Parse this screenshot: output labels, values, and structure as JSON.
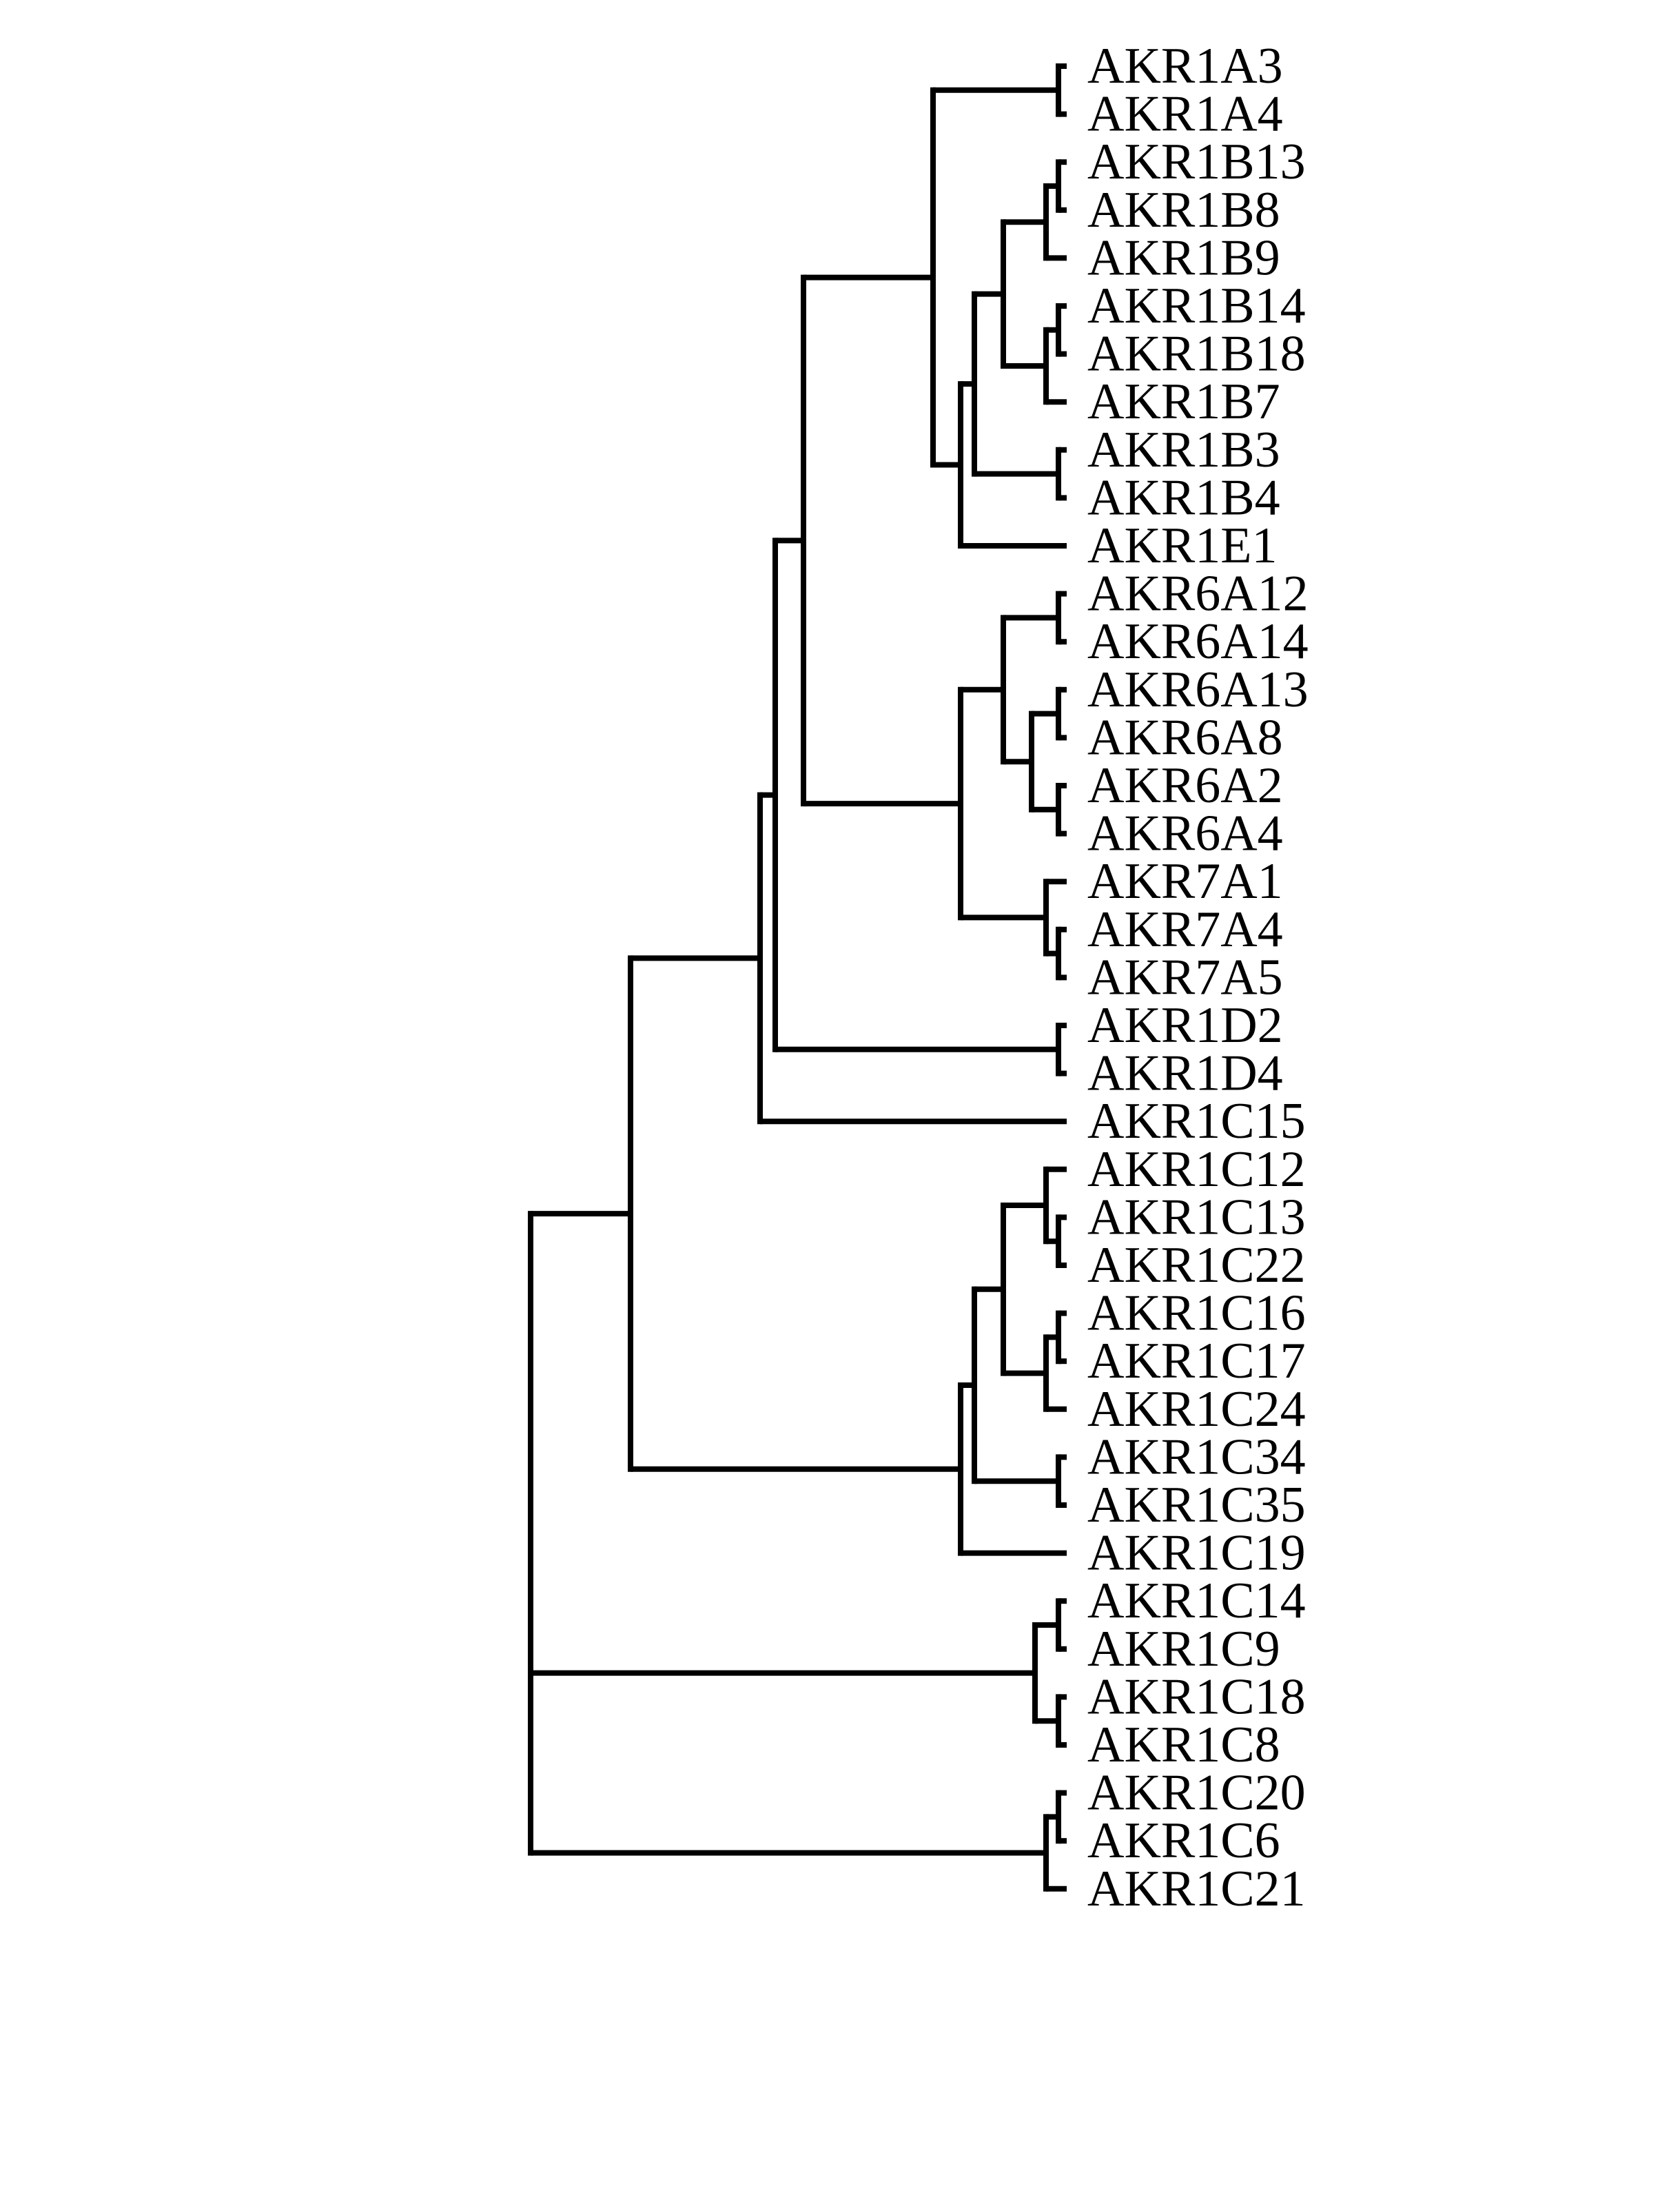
{
  "diagram": {
    "type": "dendrogram",
    "orientation": "root-left",
    "colors": {
      "line": "#000000",
      "text": "#000000",
      "background": "#ffffff"
    },
    "labels": [
      "AKR1A3",
      "AKR1A4",
      "AKR1B13",
      "AKR1B8",
      "AKR1B9",
      "AKR1B14",
      "AKR1B18",
      "AKR1B7",
      "AKR1B3",
      "AKR1B4",
      "AKR1E1",
      "AKR6A12",
      "AKR6A14",
      "AKR6A13",
      "AKR6A8",
      "AKR6A2",
      "AKR6A4",
      "AKR7A1",
      "AKR7A4",
      "AKR7A5",
      "AKR1D2",
      "AKR1D4",
      "AKR1C15",
      "AKR1C12",
      "AKR1C13",
      "AKR1C22",
      "AKR1C16",
      "AKR1C17",
      "AKR1C24",
      "AKR1C34",
      "AKR1C35",
      "AKR1C19",
      "AKR1C14",
      "AKR1C9",
      "AKR1C18",
      "AKR1C8",
      "AKR1C20",
      "AKR1C6",
      "AKR1C21"
    ],
    "tree": {
      "name": "root",
      "children": [
        {
          "name": "clade-main",
          "children": [
            {
              "name": "clade-ab67-d-c15",
              "children": [
                {
                  "name": "clade-ab67-d",
                  "children": [
                    {
                      "name": "clade-ab67",
                      "children": [
                        {
                          "name": "clade-a-b-e",
                          "children": [
                            {
                              "name": "clade-a",
                              "children": [
                                {
                                  "leaf": 0
                                },
                                {
                                  "leaf": 1
                                }
                              ]
                            },
                            {
                              "name": "clade-b-e",
                              "children": [
                                {
                                  "name": "clade-b",
                                  "children": [
                                    {
                                      "name": "clade-b-core",
                                      "children": [
                                        {
                                          "name": "clade-b13",
                                          "children": [
                                            {
                                              "name": "clade-b13-8",
                                              "children": [
                                                {
                                                  "leaf": 2
                                                },
                                                {
                                                  "leaf": 3
                                                }
                                              ]
                                            },
                                            {
                                              "leaf": 4
                                            }
                                          ]
                                        },
                                        {
                                          "name": "clade-b14",
                                          "children": [
                                            {
                                              "name": "clade-b14-18",
                                              "children": [
                                                {
                                                  "leaf": 5
                                                },
                                                {
                                                  "leaf": 6
                                                }
                                              ]
                                            },
                                            {
                                              "leaf": 7
                                            }
                                          ]
                                        }
                                      ]
                                    },
                                    {
                                      "name": "clade-b3",
                                      "children": [
                                        {
                                          "leaf": 8
                                        },
                                        {
                                          "leaf": 9
                                        }
                                      ]
                                    }
                                  ]
                                },
                                {
                                  "leaf": 10
                                }
                              ]
                            }
                          ]
                        },
                        {
                          "name": "clade-6-7",
                          "children": [
                            {
                              "name": "clade-6",
                              "children": [
                                {
                                  "name": "clade-6a12",
                                  "children": [
                                    {
                                      "leaf": 11
                                    },
                                    {
                                      "leaf": 12
                                    }
                                  ]
                                },
                                {
                                  "name": "clade-6a13-4",
                                  "children": [
                                    {
                                      "name": "clade-6a13",
                                      "children": [
                                        {
                                          "leaf": 13
                                        },
                                        {
                                          "leaf": 14
                                        }
                                      ]
                                    },
                                    {
                                      "name": "clade-6a2",
                                      "children": [
                                        {
                                          "leaf": 15
                                        },
                                        {
                                          "leaf": 16
                                        }
                                      ]
                                    }
                                  ]
                                }
                              ]
                            },
                            {
                              "name": "clade-7",
                              "children": [
                                {
                                  "leaf": 17
                                },
                                {
                                  "name": "clade-7a4",
                                  "children": [
                                    {
                                      "leaf": 18
                                    },
                                    {
                                      "leaf": 19
                                    }
                                  ]
                                }
                              ]
                            }
                          ]
                        }
                      ]
                    },
                    {
                      "name": "clade-d",
                      "children": [
                        {
                          "leaf": 20
                        },
                        {
                          "leaf": 21
                        }
                      ]
                    }
                  ]
                },
                {
                  "leaf": 22
                }
              ]
            },
            {
              "name": "clade-c12-19",
              "children": [
                {
                  "name": "clade-c12-35",
                  "children": [
                    {
                      "name": "clade-c12-24",
                      "children": [
                        {
                          "name": "clade-c12",
                          "children": [
                            {
                              "leaf": 23
                            },
                            {
                              "name": "clade-c13",
                              "children": [
                                {
                                  "leaf": 24
                                },
                                {
                                  "leaf": 25
                                }
                              ]
                            }
                          ]
                        },
                        {
                          "name": "clade-c16",
                          "children": [
                            {
                              "name": "clade-c16-17",
                              "children": [
                                {
                                  "leaf": 26
                                },
                                {
                                  "leaf": 27
                                }
                              ]
                            },
                            {
                              "leaf": 28
                            }
                          ]
                        }
                      ]
                    },
                    {
                      "name": "clade-c34",
                      "children": [
                        {
                          "leaf": 29
                        },
                        {
                          "leaf": 30
                        }
                      ]
                    }
                  ]
                },
                {
                  "leaf": 31
                }
              ]
            }
          ]
        },
        {
          "name": "clade-c14-8",
          "children": [
            {
              "name": "clade-c14",
              "children": [
                {
                  "leaf": 32
                },
                {
                  "leaf": 33
                }
              ]
            },
            {
              "name": "clade-c18",
              "children": [
                {
                  "leaf": 34
                },
                {
                  "leaf": 35
                }
              ]
            }
          ]
        },
        {
          "name": "clade-c20-21",
          "children": [
            {
              "name": "clade-c20",
              "children": [
                {
                  "leaf": 36
                },
                {
                  "leaf": 37
                }
              ]
            },
            {
              "leaf": 38
            }
          ]
        }
      ]
    }
  }
}
